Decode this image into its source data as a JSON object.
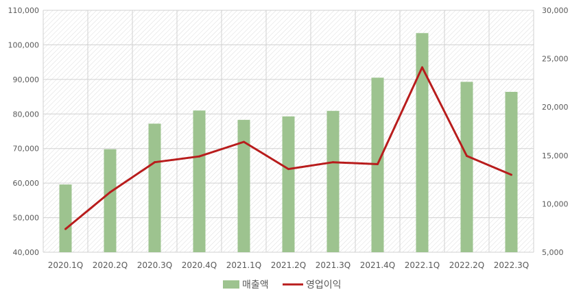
{
  "chart_data": {
    "type": "bar+line",
    "categories": [
      "2020.1Q",
      "2020.2Q",
      "2020.3Q",
      "2020.4Q",
      "2021.1Q",
      "2021.2Q",
      "2021.3Q",
      "2021.4Q",
      "2022.1Q",
      "2022.2Q",
      "2022.3Q"
    ],
    "series": [
      {
        "name": "매출액",
        "type": "bar",
        "axis": "left",
        "color": "#9dc38f",
        "values": [
          59600,
          69800,
          77200,
          81000,
          78300,
          79300,
          80900,
          90500,
          103400,
          89300,
          86400
        ]
      },
      {
        "name": "영업이익",
        "type": "line",
        "axis": "right",
        "color": "#b81c1c",
        "values": [
          7400,
          11200,
          14300,
          14900,
          16400,
          13600,
          14300,
          14100,
          24100,
          14950,
          13000
        ]
      }
    ],
    "y_left": {
      "min": 40000,
      "max": 110000,
      "step": 10000,
      "tick_labels": [
        "40,000",
        "50,000",
        "60,000",
        "70,000",
        "80,000",
        "90,000",
        "100,000",
        "110,000"
      ]
    },
    "y_right": {
      "min": 5000,
      "max": 30000,
      "step": 5000,
      "tick_labels": [
        "5,000",
        "10,000",
        "15,000",
        "20,000",
        "25,000",
        "30,000"
      ]
    },
    "grid": true,
    "plot_background": "hatched",
    "legend_position": "bottom"
  }
}
